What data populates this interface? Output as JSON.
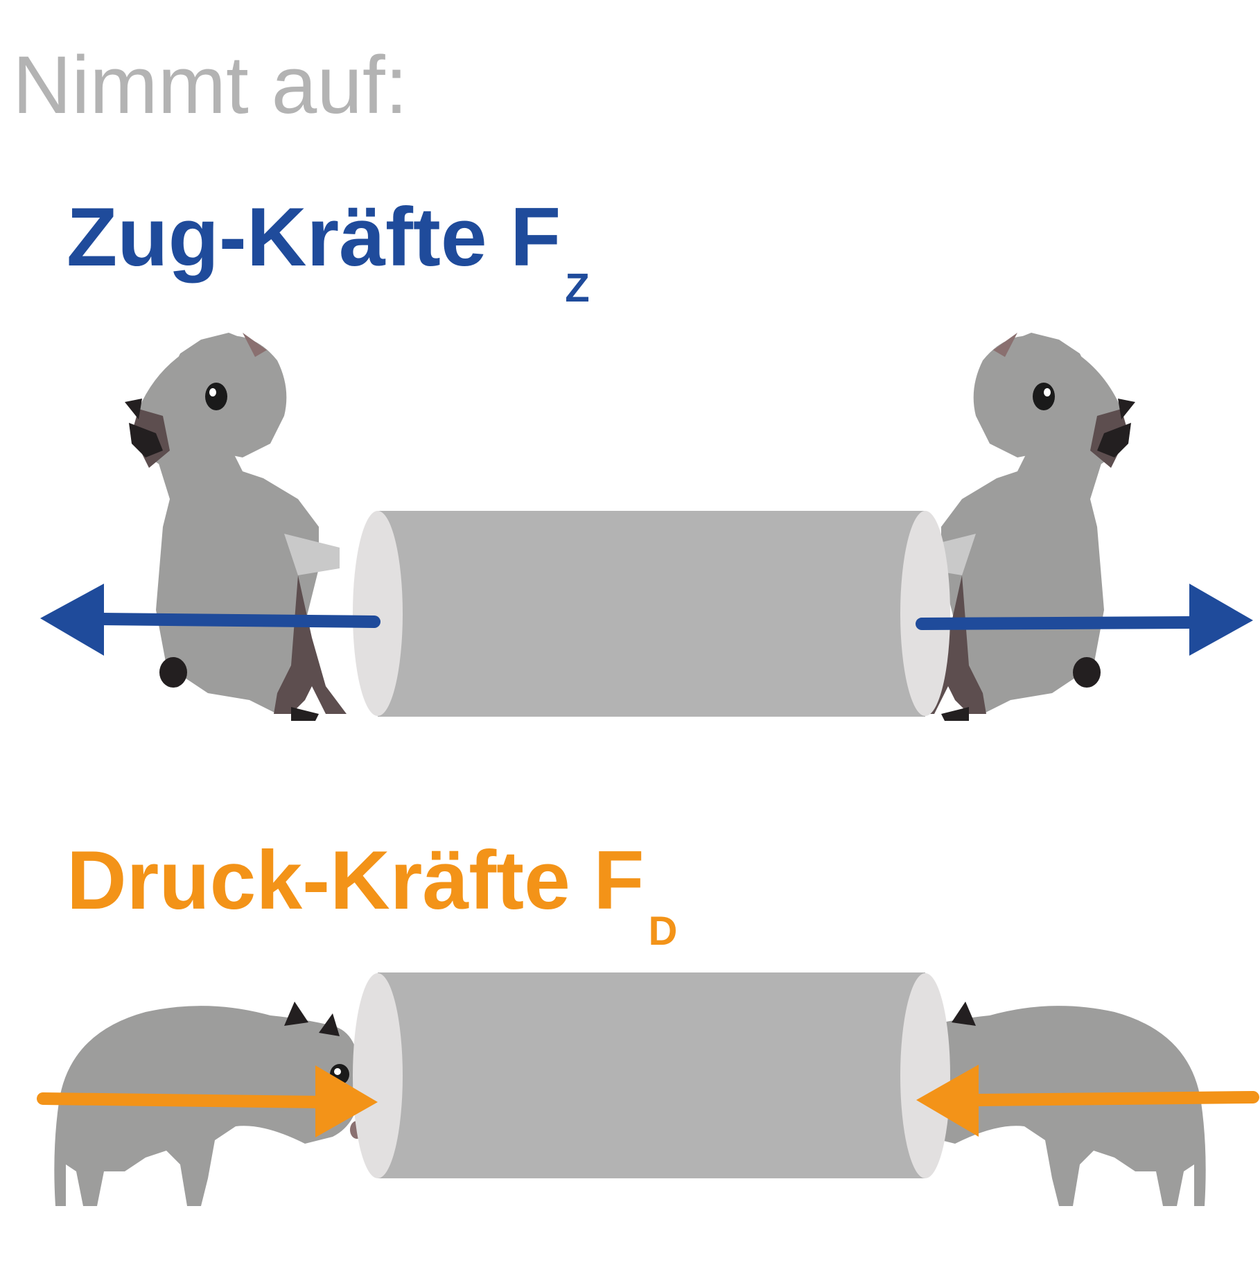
{
  "intro": "Nimmt auf:",
  "tension": {
    "label": "Zug-Kräfte F",
    "subscript": "Z",
    "color": "#1f4b9b"
  },
  "compression": {
    "label": "Druck-Kräfte F",
    "subscript": "D",
    "color": "#f39318"
  },
  "colors": {
    "cylinder": "#b3b3b3",
    "cylinder_face": "#e2e0e0",
    "animal": "#9d9d9c",
    "animal_dark": "#231f20",
    "title_gray": "#b3b3b3"
  },
  "icons": [
    "capybara-icon",
    "cylinder-icon",
    "arrow-icon"
  ]
}
